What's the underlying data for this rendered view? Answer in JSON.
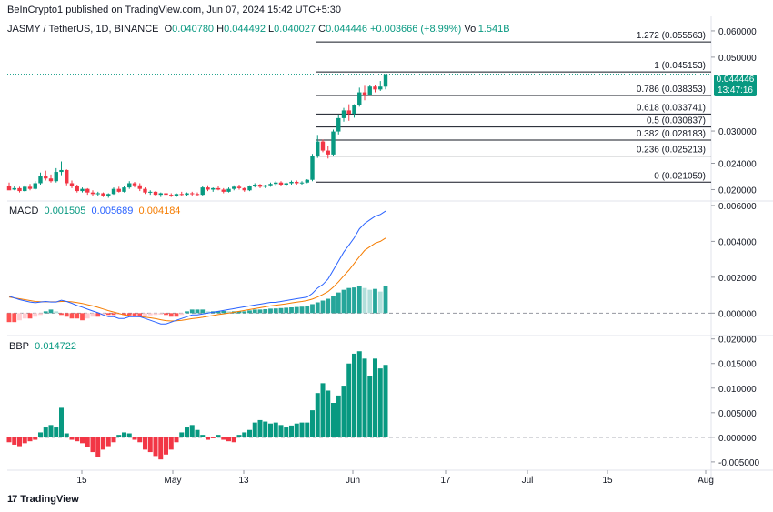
{
  "header": {
    "published": "BeInCrypto1 published on TradingView.com, Jun 07, 2024 15:42 UTC+5:30"
  },
  "symbol": {
    "name": "JASMY / TetherUS, 1D, BINANCE",
    "o_label": "O",
    "o": "0.040780",
    "h_label": "H",
    "h": "0.044492",
    "l_label": "L",
    "l": "0.040027",
    "c_label": "C",
    "c": "0.044446",
    "change": "+0.003666 (+8.99%)",
    "vol_label": "Vol",
    "vol": "1.541B"
  },
  "price_tag": {
    "price": "0.044446",
    "countdown": "13:47:16"
  },
  "macd_legend": {
    "label": "MACD",
    "hist": "0.001505",
    "macd": "0.005689",
    "signal": "0.004184"
  },
  "bbp_legend": {
    "label": "BBP",
    "value": "0.014722"
  },
  "footer": {
    "logo": "17",
    "brand": "TradingView"
  },
  "colors": {
    "up": "#089981",
    "down": "#f23645",
    "macd": "#2962ff",
    "signal": "#f57c00",
    "fib": "#131722"
  },
  "chart_data": {
    "type": "candlestick",
    "x_tick_labels": [
      "15",
      "May",
      "13",
      "Jun",
      "17",
      "Jul",
      "15",
      "Aug"
    ],
    "price_axis": {
      "scale": "log",
      "tick_labels": [
        "0.060000",
        "0.050000",
        "0.044446",
        "0.030000",
        "0.024000",
        "0.020000"
      ],
      "range": [
        0.0186,
        0.0655
      ]
    },
    "fib_levels": [
      {
        "label": "1.272 (0.055563)",
        "value": 0.055563
      },
      {
        "label": "1 (0.045153)",
        "value": 0.045153
      },
      {
        "label": "0.786 (0.038353)",
        "value": 0.038353
      },
      {
        "label": "0.618 (0.033741)",
        "value": 0.033741
      },
      {
        "label": "0.5 (0.030837)",
        "value": 0.030837
      },
      {
        "label": "0.382 (0.028183)",
        "value": 0.028183
      },
      {
        "label": "0.236 (0.025213)",
        "value": 0.025213
      },
      {
        "label": "0 (0.021059)",
        "value": 0.021059
      }
    ],
    "candles": [
      [
        0.0205,
        0.021,
        0.02,
        0.0199
      ],
      [
        0.02,
        0.0205,
        0.0199,
        0.0202
      ],
      [
        0.0202,
        0.0204,
        0.0196,
        0.0198
      ],
      [
        0.0198,
        0.0206,
        0.0197,
        0.0204
      ],
      [
        0.0204,
        0.0208,
        0.0199,
        0.0201
      ],
      [
        0.0201,
        0.0212,
        0.02,
        0.0209
      ],
      [
        0.0209,
        0.0225,
        0.0207,
        0.022
      ],
      [
        0.022,
        0.0228,
        0.0213,
        0.0216
      ],
      [
        0.0216,
        0.0222,
        0.021,
        0.0212
      ],
      [
        0.0212,
        0.0232,
        0.021,
        0.0226
      ],
      [
        0.0226,
        0.0243,
        0.0221,
        0.0229
      ],
      [
        0.0229,
        0.023,
        0.0206,
        0.0209
      ],
      [
        0.0209,
        0.0213,
        0.0202,
        0.0205
      ],
      [
        0.0205,
        0.0207,
        0.0196,
        0.0198
      ],
      [
        0.0198,
        0.0203,
        0.0196,
        0.0201
      ],
      [
        0.0201,
        0.0202,
        0.0193,
        0.0196
      ],
      [
        0.0196,
        0.0199,
        0.0192,
        0.0194
      ],
      [
        0.0194,
        0.0197,
        0.0191,
        0.0195
      ],
      [
        0.0195,
        0.0196,
        0.019,
        0.0192
      ],
      [
        0.0192,
        0.0195,
        0.0189,
        0.0194
      ],
      [
        0.0194,
        0.0203,
        0.0193,
        0.0201
      ],
      [
        0.0201,
        0.0204,
        0.0196,
        0.0197
      ],
      [
        0.0197,
        0.0205,
        0.0196,
        0.0203
      ],
      [
        0.0203,
        0.0212,
        0.0201,
        0.0209
      ],
      [
        0.0209,
        0.0211,
        0.0203,
        0.0206
      ],
      [
        0.0206,
        0.0209,
        0.0198,
        0.0201
      ],
      [
        0.0201,
        0.0203,
        0.0194,
        0.0196
      ],
      [
        0.0196,
        0.0199,
        0.0193,
        0.0197
      ],
      [
        0.0197,
        0.0198,
        0.0191,
        0.0193
      ],
      [
        0.0193,
        0.0196,
        0.019,
        0.0195
      ],
      [
        0.0195,
        0.0197,
        0.0191,
        0.0193
      ],
      [
        0.0193,
        0.0195,
        0.019,
        0.0191
      ],
      [
        0.0191,
        0.0195,
        0.019,
        0.0194
      ],
      [
        0.0194,
        0.0197,
        0.0192,
        0.0193
      ],
      [
        0.0193,
        0.0196,
        0.0191,
        0.0195
      ],
      [
        0.0195,
        0.0197,
        0.0192,
        0.0194
      ],
      [
        0.0194,
        0.0196,
        0.0191,
        0.0193
      ],
      [
        0.0193,
        0.0205,
        0.0192,
        0.0203
      ],
      [
        0.0203,
        0.0206,
        0.0198,
        0.02
      ],
      [
        0.02,
        0.0203,
        0.0197,
        0.0202
      ],
      [
        0.0202,
        0.0205,
        0.0199,
        0.02
      ],
      [
        0.02,
        0.0202,
        0.0195,
        0.0197
      ],
      [
        0.0197,
        0.0203,
        0.0196,
        0.0201
      ],
      [
        0.0201,
        0.0206,
        0.0199,
        0.0204
      ],
      [
        0.0204,
        0.0207,
        0.02,
        0.0202
      ],
      [
        0.0202,
        0.0203,
        0.0197,
        0.0199
      ],
      [
        0.0199,
        0.0206,
        0.0198,
        0.0205
      ],
      [
        0.0205,
        0.0209,
        0.0203,
        0.0207
      ],
      [
        0.0207,
        0.0208,
        0.0202,
        0.0204
      ],
      [
        0.0204,
        0.0207,
        0.0202,
        0.0206
      ],
      [
        0.0206,
        0.021,
        0.0204,
        0.0208
      ],
      [
        0.0208,
        0.0212,
        0.0206,
        0.021
      ],
      [
        0.021,
        0.0212,
        0.0205,
        0.0207
      ],
      [
        0.0207,
        0.021,
        0.0205,
        0.0209
      ],
      [
        0.0209,
        0.0213,
        0.0207,
        0.0211
      ],
      [
        0.0211,
        0.0213,
        0.0207,
        0.0209
      ],
      [
        0.0209,
        0.0212,
        0.0207,
        0.021
      ],
      [
        0.021,
        0.0215,
        0.0209,
        0.0214
      ],
      [
        0.0214,
        0.0256,
        0.0212,
        0.0253
      ],
      [
        0.0253,
        0.0292,
        0.0249,
        0.0279
      ],
      [
        0.0279,
        0.0283,
        0.0259,
        0.0262
      ],
      [
        0.0262,
        0.0271,
        0.0248,
        0.0255
      ],
      [
        0.0255,
        0.0303,
        0.0253,
        0.0299
      ],
      [
        0.0299,
        0.0336,
        0.0293,
        0.0328
      ],
      [
        0.0328,
        0.0352,
        0.032,
        0.0346
      ],
      [
        0.0346,
        0.0361,
        0.0322,
        0.0338
      ],
      [
        0.0338,
        0.0361,
        0.0329,
        0.0359
      ],
      [
        0.0359,
        0.0405,
        0.0355,
        0.0392
      ],
      [
        0.0392,
        0.041,
        0.0371,
        0.0385
      ],
      [
        0.0385,
        0.0412,
        0.0384,
        0.0408
      ],
      [
        0.0408,
        0.0413,
        0.0392,
        0.04
      ],
      [
        0.04,
        0.0424,
        0.0396,
        0.0408
      ],
      [
        0.04078,
        0.044492,
        0.040027,
        0.044446
      ]
    ],
    "macd_axis": {
      "tick_labels": [
        "0.006000",
        "0.004000",
        "0.002000",
        "0.000000"
      ],
      "range": [
        -0.0012,
        0.0062
      ]
    },
    "macd_line": [
      0.00095,
      0.00085,
      0.00075,
      0.00068,
      0.00062,
      0.00058,
      0.00062,
      0.00065,
      0.00062,
      0.00062,
      0.00072,
      0.00065,
      0.00055,
      0.00042,
      0.00033,
      0.00022,
      0.00012,
      2e-05,
      -0.0001,
      -0.0002,
      -0.0002,
      -0.0003,
      -0.0003,
      -0.0002,
      -0.0002,
      -0.0002,
      -0.0003,
      -0.0004,
      -0.0005,
      -0.0006,
      -0.0006,
      -0.0005,
      -0.0004,
      -0.0003,
      -0.0002,
      -0.0001,
      -0.0001,
      -5e-05,
      0.0,
      5e-05,
      0.0001,
      0.00015,
      0.0002,
      0.00025,
      0.0003,
      0.00035,
      0.0004,
      0.00045,
      0.0005,
      0.00055,
      0.0006,
      0.0006,
      0.00065,
      0.0007,
      0.00075,
      0.0008,
      0.00085,
      0.0009,
      0.0011,
      0.0014,
      0.0016,
      0.0019,
      0.0024,
      0.0029,
      0.0034,
      0.0038,
      0.0042,
      0.0047,
      0.005,
      0.0052,
      0.0054,
      0.0055,
      0.005689
    ],
    "signal_line": [
      0.0009,
      0.00085,
      0.0008,
      0.00075,
      0.0007,
      0.00065,
      0.00064,
      0.00063,
      0.00063,
      0.00063,
      0.00065,
      0.00065,
      0.00063,
      0.00059,
      0.00054,
      0.00047,
      0.0004,
      0.00032,
      0.00023,
      0.00014,
      6e-05,
      -2e-05,
      -0.0001,
      -0.00014,
      -0.00018,
      -0.0002,
      -0.00022,
      -0.00026,
      -0.00031,
      -0.00037,
      -0.00042,
      -0.00044,
      -0.00043,
      -0.0004,
      -0.00036,
      -0.00031,
      -0.00027,
      -0.00023,
      -0.00018,
      -0.00013,
      -8e-05,
      -4e-05,
      0.0,
      5e-05,
      0.0001,
      0.00015,
      0.0002,
      0.00025,
      0.0003,
      0.00035,
      0.0004,
      0.00044,
      0.00048,
      0.00052,
      0.00057,
      0.00061,
      0.00065,
      0.0007,
      0.00078,
      0.0009,
      0.00104,
      0.0012,
      0.00145,
      0.00175,
      0.00208,
      0.0024,
      0.00277,
      0.00315,
      0.0035,
      0.0037,
      0.0039,
      0.004,
      0.004184
    ],
    "macd_hist": [
      -0.0005,
      -0.0005,
      -0.0004,
      -0.0003,
      -0.0003,
      -0.0002,
      -0.0001,
      0.0001,
      0.0002,
      0.0001,
      -0.0001,
      -0.0002,
      -0.0003,
      -0.0003,
      -0.0004,
      -0.0003,
      -0.0002,
      -0.0002,
      -0.0001,
      -0.0001,
      -0.0001,
      -8e-05,
      -0.0001,
      -0.00012,
      -0.00016,
      -0.00018,
      -0.00016,
      -0.00012,
      -0.0001,
      -8e-05,
      -0.0001,
      -0.0002,
      -0.0002,
      -0.0001,
      0.0001,
      0.0002,
      0.0002,
      0.0002,
      0.0001,
      0.0001,
      0.0001,
      0.00012,
      0.0001,
      0.0001,
      0.0001,
      0.0001,
      0.00015,
      0.0002,
      0.0002,
      0.00022,
      0.00025,
      0.00026,
      0.00028,
      0.0003,
      0.00032,
      0.00034,
      0.00036,
      0.0004,
      0.0005,
      0.0006,
      0.0007,
      0.0008,
      0.00095,
      0.00115,
      0.0013,
      0.0014,
      0.00143,
      0.0015,
      0.0014,
      0.0013,
      0.00135,
      0.0012,
      0.001505
    ],
    "bbp_axis": {
      "tick_labels": [
        "0.020000",
        "0.015000",
        "0.010000",
        "0.005000",
        "0.000000",
        "-0.005000"
      ],
      "range": [
        -0.0065,
        0.0205
      ]
    },
    "bbp": [
      -0.001,
      -0.0015,
      -0.0018,
      -0.0012,
      -0.0008,
      -0.0005,
      0.001,
      0.002,
      0.0025,
      0.002,
      0.006,
      0.0008,
      -0.0005,
      -0.0008,
      -0.0012,
      -0.002,
      -0.003,
      -0.004,
      -0.0025,
      -0.0018,
      -0.001,
      0.0005,
      0.001,
      0.0008,
      -0.0005,
      -0.001,
      -0.0025,
      -0.003,
      -0.0038,
      -0.0045,
      -0.0035,
      -0.0025,
      -0.001,
      0.001,
      0.002,
      0.0025,
      0.0015,
      0.0005,
      -0.0005,
      -0.0002,
      0.0005,
      -0.0005,
      -0.0008,
      -0.001,
      0.0005,
      0.001,
      0.0015,
      0.003,
      0.0035,
      0.0032,
      0.0028,
      0.003,
      0.0025,
      0.002,
      0.0024,
      0.0028,
      0.003,
      0.003,
      0.0055,
      0.009,
      0.011,
      0.0095,
      0.007,
      0.0085,
      0.0105,
      0.015,
      0.017,
      0.0175,
      0.016,
      0.0125,
      0.016,
      0.014,
      0.014722
    ]
  }
}
